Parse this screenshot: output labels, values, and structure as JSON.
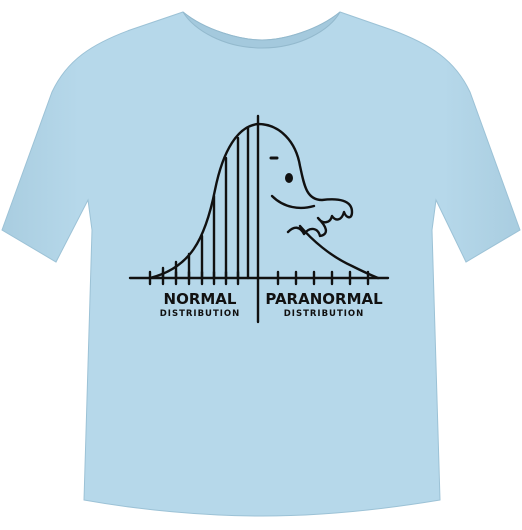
{
  "product": {
    "type": "t-shirt",
    "shirt_color": "#b6d8ea",
    "ink_color": "#111111"
  },
  "print": {
    "left_title": "NORMAL",
    "left_subtitle": "DISTRIBUTION",
    "right_title": "PARANORMAL",
    "right_subtitle": "DISTRIBUTION"
  }
}
